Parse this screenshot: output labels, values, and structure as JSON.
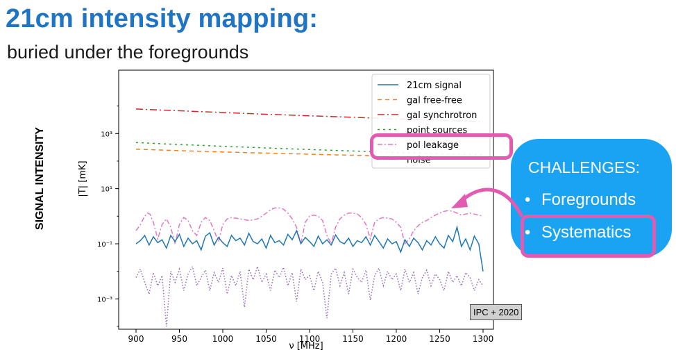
{
  "slide": {
    "title": "21cm intensity mapping:",
    "subtitle": "buried under the foregrounds",
    "side_label": "SIGNAL INTENSITY",
    "citation": "IPC + 2020"
  },
  "challenges": {
    "title": "CHALLENGES:",
    "bullet": "•",
    "items": [
      "Foregrounds",
      "Systematics"
    ]
  },
  "colors": {
    "title": "#1f74c4",
    "box": "#1aa3f2",
    "highlight": "#e35ab1"
  },
  "chart_data": {
    "type": "line",
    "xlabel": "ν [MHz]",
    "ylabel": "|T| [mK]",
    "xlim": [
      880,
      1312
    ],
    "ylim_log10": [
      -4.1,
      5.3
    ],
    "log_y": true,
    "x_ticks": [
      900,
      950,
      1000,
      1050,
      1100,
      1150,
      1200,
      1250,
      1300
    ],
    "y_ticks": [
      {
        "exp": 3,
        "label": "10³"
      },
      {
        "exp": 1,
        "label": "10¹"
      },
      {
        "exp": -1,
        "label": "10⁻¹"
      },
      {
        "exp": -3,
        "label": "10⁻³"
      }
    ],
    "legend_position": "top-right",
    "series": [
      {
        "name": "21cm signal",
        "color": "#1f77b4",
        "dash": "solid",
        "x": [
          900,
          905,
          910,
          915,
          920,
          925,
          930,
          935,
          940,
          945,
          950,
          955,
          960,
          965,
          970,
          975,
          980,
          985,
          990,
          995,
          1000,
          1005,
          1010,
          1015,
          1020,
          1025,
          1030,
          1035,
          1040,
          1045,
          1050,
          1055,
          1060,
          1065,
          1070,
          1075,
          1080,
          1085,
          1090,
          1095,
          1100,
          1105,
          1110,
          1115,
          1120,
          1125,
          1130,
          1135,
          1140,
          1145,
          1150,
          1155,
          1160,
          1165,
          1170,
          1175,
          1180,
          1185,
          1190,
          1195,
          1200,
          1205,
          1210,
          1215,
          1220,
          1225,
          1230,
          1235,
          1240,
          1245,
          1250,
          1255,
          1260,
          1265,
          1270,
          1275,
          1280,
          1285,
          1290,
          1295,
          1300
        ],
        "y": [
          0.1,
          0.13,
          0.2,
          0.09,
          0.18,
          0.11,
          0.14,
          0.07,
          0.2,
          0.12,
          0.22,
          0.08,
          0.16,
          0.1,
          0.13,
          0.06,
          0.19,
          0.25,
          0.09,
          0.17,
          0.11,
          0.08,
          0.2,
          0.13,
          0.16,
          0.09,
          0.24,
          0.12,
          0.1,
          0.15,
          0.07,
          0.2,
          0.11,
          0.13,
          0.09,
          0.22,
          0.14,
          0.3,
          0.1,
          0.17,
          0.12,
          0.08,
          0.19,
          0.1,
          0.14,
          0.09,
          0.21,
          0.12,
          0.1,
          0.16,
          0.08,
          0.13,
          0.11,
          0.18,
          0.09,
          0.2,
          0.12,
          0.07,
          0.15,
          0.1,
          0.12,
          0.05,
          0.14,
          0.08,
          0.16,
          0.11,
          0.06,
          0.13,
          0.09,
          0.18,
          0.1,
          0.07,
          0.2,
          0.12,
          0.4,
          0.08,
          0.15,
          0.06,
          0.19,
          0.1,
          0.01
        ]
      },
      {
        "name": "gal free-free",
        "color": "#ff7f0e",
        "dash": "6,5",
        "x": [
          900,
          950,
          1000,
          1050,
          1100,
          1150,
          1200,
          1250,
          1300
        ],
        "y": [
          270,
          240,
          215,
          195,
          178,
          163,
          150,
          140,
          130
        ]
      },
      {
        "name": "gal synchrotron",
        "color": "#d62728",
        "dash": "10,4,2,4",
        "x": [
          900,
          950,
          1000,
          1050,
          1100,
          1150,
          1200,
          1250,
          1300
        ],
        "y": [
          7800,
          6700,
          5800,
          5000,
          4400,
          3900,
          3400,
          3000,
          2700
        ]
      },
      {
        "name": "point sources",
        "color": "#2ca02c",
        "dash": "3,5",
        "x": [
          900,
          950,
          1000,
          1050,
          1100,
          1150,
          1200,
          1250,
          1300
        ],
        "y": [
          470,
          400,
          345,
          300,
          262,
          232,
          206,
          185,
          166
        ]
      },
      {
        "name": "pol leakage",
        "color": "#e377c2",
        "dash": "7,3,2,3",
        "x": [
          900,
          905,
          910,
          913,
          916,
          920,
          925,
          930,
          935,
          940,
          945,
          950,
          955,
          960,
          965,
          970,
          975,
          980,
          985,
          990,
          995,
          1000,
          1005,
          1010,
          1015,
          1020,
          1025,
          1030,
          1035,
          1040,
          1045,
          1050,
          1055,
          1060,
          1065,
          1070,
          1075,
          1080,
          1085,
          1090,
          1095,
          1100,
          1105,
          1110,
          1115,
          1120,
          1125,
          1130,
          1135,
          1140,
          1145,
          1150,
          1155,
          1160,
          1165,
          1170,
          1175,
          1180,
          1185,
          1190,
          1195,
          1200,
          1205,
          1210,
          1215,
          1220,
          1225,
          1230,
          1235,
          1240,
          1245,
          1250,
          1255,
          1260,
          1265,
          1270,
          1275,
          1280,
          1285,
          1290,
          1295,
          1300
        ],
        "y": [
          0.3,
          0.5,
          1.0,
          1.3,
          1.2,
          0.6,
          0.15,
          0.5,
          0.8,
          0.4,
          0.1,
          0.5,
          0.9,
          0.7,
          0.3,
          0.2,
          0.6,
          0.9,
          0.7,
          0.3,
          0.12,
          0.5,
          0.8,
          0.9,
          0.85,
          0.8,
          0.75,
          0.7,
          0.75,
          0.8,
          1.0,
          1.3,
          1.7,
          2.0,
          2.0,
          1.8,
          1.3,
          0.8,
          0.4,
          0.1,
          0.6,
          1.0,
          1.1,
          1.0,
          0.7,
          0.2,
          0.1,
          0.4,
          0.8,
          1.1,
          1.3,
          1.3,
          1.2,
          0.9,
          0.5,
          0.15,
          0.6,
          0.8,
          0.9,
          0.85,
          0.8,
          0.6,
          0.4,
          0.1,
          0.15,
          0.3,
          0.45,
          0.6,
          0.7,
          0.9,
          1.1,
          1.3,
          1.5,
          1.6,
          1.5,
          1.3,
          1.1,
          1.2,
          1.3,
          1.2,
          1.1,
          1.0
        ]
      },
      {
        "name": "noise",
        "color": "#9467bd",
        "dash": "1.5,2.5",
        "x": [
          900,
          905,
          910,
          915,
          920,
          925,
          930,
          935,
          940,
          945,
          950,
          955,
          960,
          965,
          970,
          975,
          980,
          985,
          990,
          995,
          1000,
          1005,
          1010,
          1015,
          1020,
          1025,
          1030,
          1035,
          1040,
          1045,
          1050,
          1055,
          1060,
          1065,
          1070,
          1075,
          1080,
          1085,
          1090,
          1095,
          1100,
          1105,
          1110,
          1115,
          1120,
          1125,
          1130,
          1135,
          1140,
          1145,
          1150,
          1155,
          1160,
          1165,
          1170,
          1175,
          1180,
          1185,
          1190,
          1195,
          1200,
          1205,
          1210,
          1215,
          1220,
          1225,
          1230,
          1235,
          1240,
          1245,
          1250,
          1255,
          1260,
          1265,
          1270,
          1275,
          1280,
          1285,
          1290,
          1295,
          1300
        ],
        "y": [
          0.006,
          0.012,
          0.004,
          0.0015,
          0.009,
          0.003,
          0.007,
          0.0001,
          0.01,
          0.004,
          0.012,
          0.002,
          0.008,
          0.015,
          0.003,
          0.006,
          0.011,
          0.002,
          0.009,
          0.004,
          0.013,
          0.0015,
          0.007,
          0.003,
          0.01,
          0.0005,
          0.012,
          0.005,
          0.015,
          0.004,
          0.008,
          0.002,
          0.011,
          0.006,
          0.014,
          0.003,
          0.009,
          0.0008,
          0.012,
          0.005,
          0.007,
          0.002,
          0.01,
          0.004,
          0.0002,
          0.008,
          0.013,
          0.003,
          0.009,
          0.0015,
          0.012,
          0.006,
          0.004,
          0.011,
          0.0009,
          0.007,
          0.013,
          0.003,
          0.01,
          0.005,
          0.008,
          0.002,
          0.012,
          0.004,
          0.009,
          0.0015,
          0.006,
          0.011,
          0.003,
          0.008,
          0.005,
          0.002,
          0.01,
          0.004,
          0.007,
          0.003,
          0.009,
          0.006,
          0.002,
          0.005,
          0.003
        ]
      }
    ]
  }
}
